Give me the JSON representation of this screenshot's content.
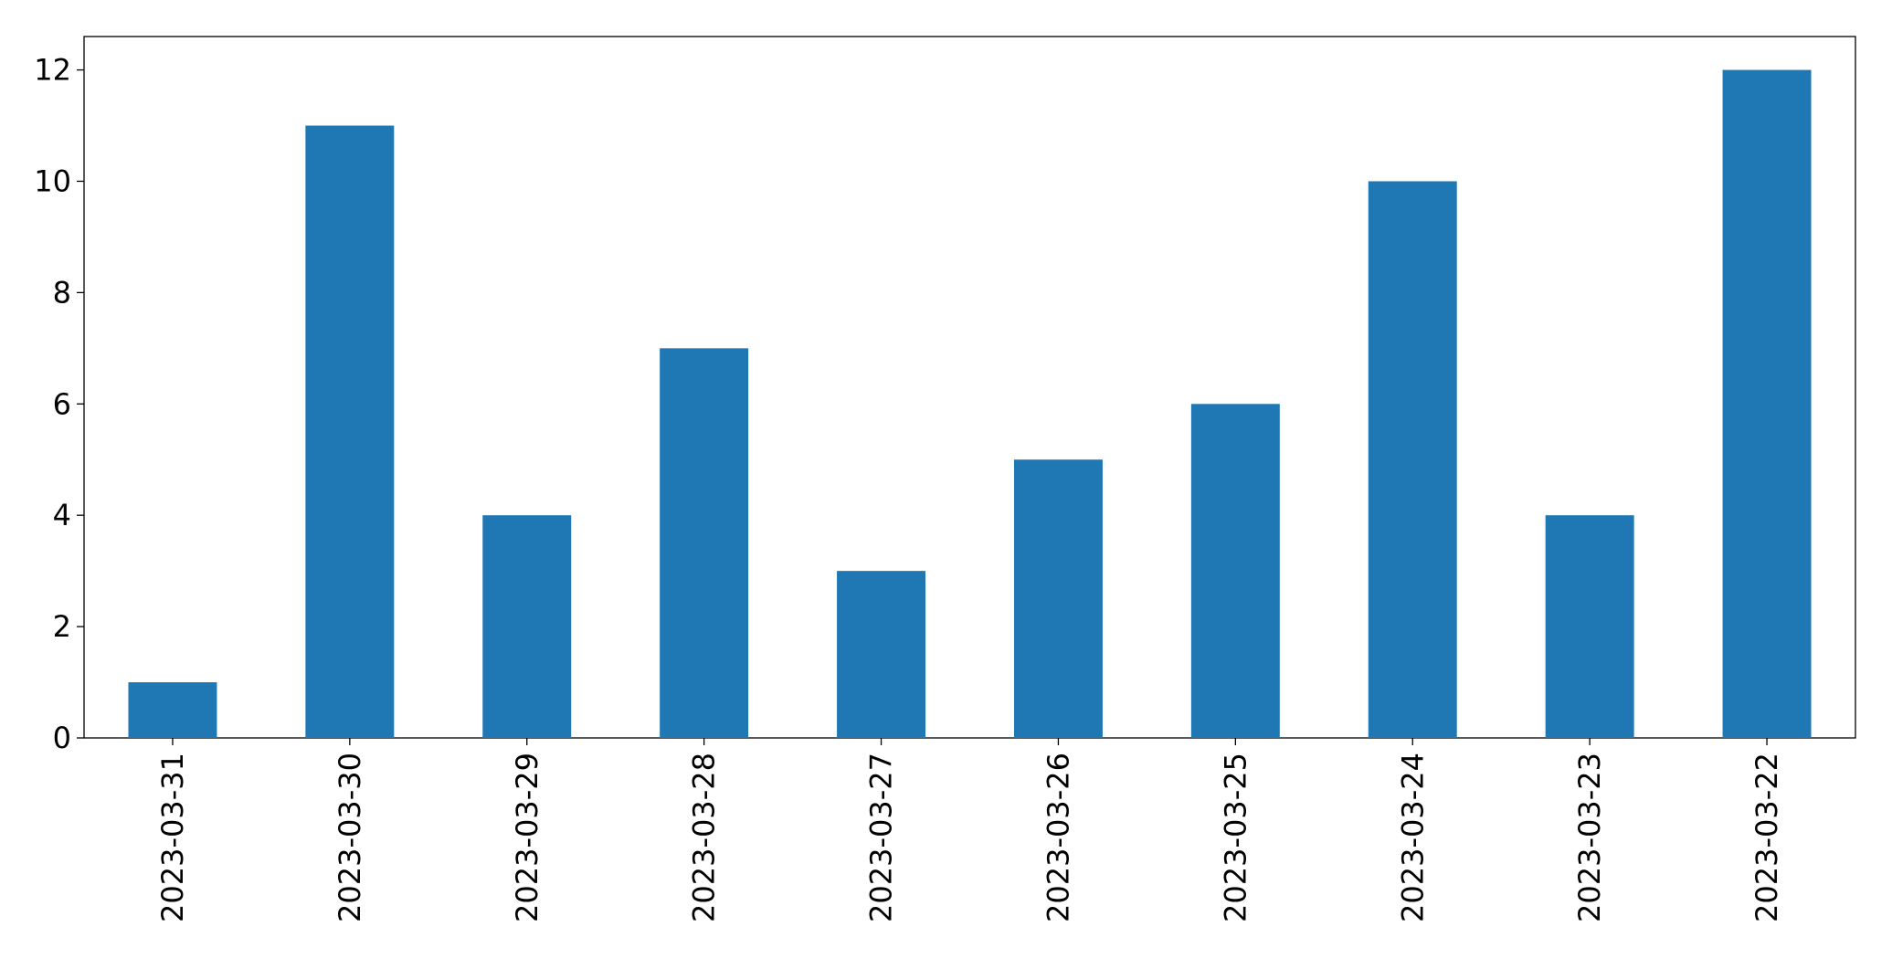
{
  "chart_data": {
    "type": "bar",
    "categories": [
      "2023-03-31",
      "2023-03-30",
      "2023-03-29",
      "2023-03-28",
      "2023-03-27",
      "2023-03-26",
      "2023-03-25",
      "2023-03-24",
      "2023-03-23",
      "2023-03-22"
    ],
    "values": [
      1,
      11,
      4,
      7,
      3,
      5,
      6,
      10,
      4,
      12
    ],
    "color": "#1f77b4",
    "ylim": [
      0,
      12.6
    ],
    "yticks": [
      0,
      2,
      4,
      6,
      8,
      10,
      12
    ],
    "grid": false
  }
}
